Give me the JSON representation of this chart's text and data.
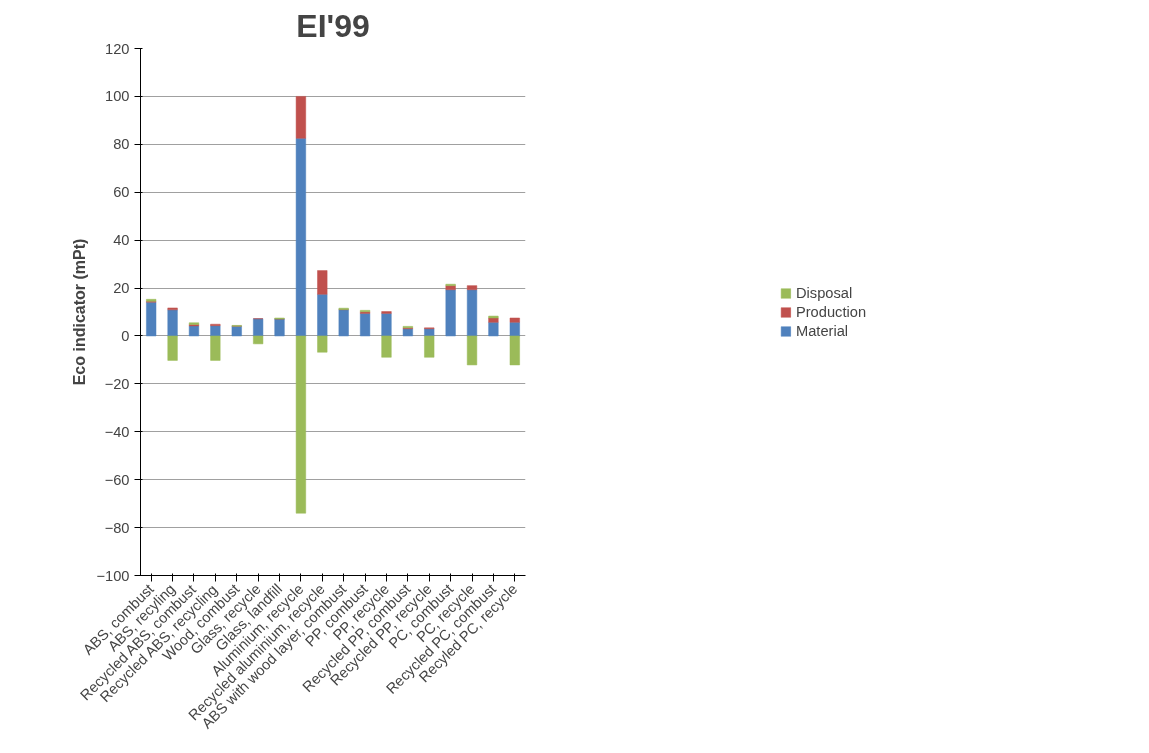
{
  "chart_data": {
    "type": "bar",
    "title": "EI'99",
    "ylabel": "Eco indicator (mPt)",
    "categories": [
      "ABS, combust",
      "ABS, recyling",
      "Recycled ABS, combust",
      "Recycled ABS, recycling",
      "Wood, combust",
      "Glass, recycle",
      "Glass, landfill",
      "Aluminium, recycle",
      "Recycled aluminium, recycle",
      "ABS with wood layer, combust",
      "PP, combust",
      "PP, recycle",
      "Recycled PP, combust",
      "Recycled PP, recycle",
      "PC, combust",
      "PC, recycle",
      "Recycled PC, combust",
      "Recyled PC, recycle"
    ],
    "stacked": true,
    "series": [
      {
        "name": "Material",
        "color": "#4f81bd",
        "values": [
          14.1,
          10.9,
          4.2,
          4.3,
          4.1,
          7.2,
          7.1,
          82.5,
          17.4,
          11.0,
          9.4,
          9.4,
          3.0,
          3.0,
          19.3,
          19.3,
          5.7,
          5.7
        ]
      },
      {
        "name": "Production",
        "color": "#c0504d",
        "values": [
          0.4,
          0.8,
          0.6,
          0.6,
          0,
          0,
          0,
          17.5,
          9.9,
          0,
          0.7,
          0.8,
          0.4,
          0.4,
          1.7,
          1.7,
          1.8,
          1.8
        ]
      },
      {
        "name": "Disposal",
        "color": "#9bbb59",
        "values": [
          0.8,
          -10.2,
          0.7,
          -10.2,
          0.3,
          -3.3,
          0.4,
          -74,
          -6.8,
          0.6,
          0.6,
          -8.9,
          0.6,
          -8.9,
          0.6,
          -12.1,
          0.8,
          -12.1
        ]
      }
    ],
    "ylim": [
      -100,
      120
    ],
    "yticks": [
      -100,
      -80,
      -60,
      -40,
      -20,
      0,
      20,
      40,
      60,
      80,
      100,
      120
    ],
    "grid": "y",
    "legend": "right"
  }
}
